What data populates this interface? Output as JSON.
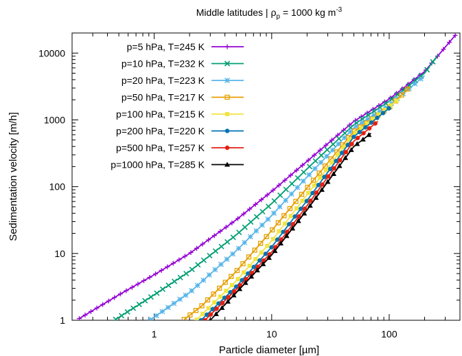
{
  "chart_data": {
    "type": "line",
    "title": "Middle latitudes | ρ",
    "title_sub": "p",
    "title_rest": " = 1000 kg m",
    "title_sup": "-3",
    "xlabel": "Particle diameter [µm]",
    "ylabel": "Sedimentation velocity [m/h]",
    "xscale": "log",
    "yscale": "log",
    "xlim": [
      0.2,
      400
    ],
    "ylim": [
      1,
      20000
    ],
    "x_ticks": [
      1,
      10,
      100
    ],
    "x_tick_labels": [
      "1",
      "10",
      "100"
    ],
    "y_ticks": [
      1,
      10,
      100,
      1000,
      10000
    ],
    "y_tick_labels": [
      "1",
      "10",
      "100",
      "1000",
      "10000"
    ],
    "grid": false,
    "legend_position": "top-left",
    "series": [
      {
        "name": "p=5 hPa, T=245 K",
        "color": "#9400d3",
        "marker": "plus",
        "points": [
          [
            0.23,
            1.06
          ],
          [
            0.5,
            2.4
          ],
          [
            1,
            4.8
          ],
          [
            2,
            10
          ],
          [
            5,
            32
          ],
          [
            10,
            85
          ],
          [
            20,
            240
          ],
          [
            50,
            950
          ],
          [
            100,
            2050
          ],
          [
            200,
            5300
          ],
          [
            370,
            19000
          ]
        ]
      },
      {
        "name": "p=10 hPa, T=232 K",
        "color": "#009e73",
        "marker": "cross",
        "points": [
          [
            0.47,
            1.03
          ],
          [
            1,
            2.4
          ],
          [
            2,
            5.4
          ],
          [
            5,
            19
          ],
          [
            10,
            56
          ],
          [
            20,
            185
          ],
          [
            50,
            850
          ],
          [
            100,
            1900
          ],
          [
            200,
            5000
          ],
          [
            260,
            9400
          ]
        ]
      },
      {
        "name": "p=20 hPa, T=223 K",
        "color": "#56b4e9",
        "marker": "star",
        "points": [
          [
            0.93,
            1.02
          ],
          [
            2,
            2.6
          ],
          [
            5,
            11
          ],
          [
            10,
            37
          ],
          [
            20,
            140
          ],
          [
            50,
            760
          ],
          [
            100,
            1650
          ],
          [
            200,
            4600
          ]
        ]
      },
      {
        "name": "p=50 hPa, T=217 K",
        "color": "#e69f00",
        "marker": "box",
        "points": [
          [
            1.8,
            1.03
          ],
          [
            2.5,
            1.6
          ],
          [
            5,
            5.4
          ],
          [
            10,
            22
          ],
          [
            20,
            96
          ],
          [
            50,
            670
          ],
          [
            100,
            1530
          ],
          [
            150,
            3150
          ]
        ]
      },
      {
        "name": "p=100 hPa, T=215 K",
        "color": "#f0e442",
        "marker": "fbox",
        "points": [
          [
            2.3,
            1.02
          ],
          [
            5,
            3.9
          ],
          [
            10,
            15.5
          ],
          [
            20,
            76
          ],
          [
            50,
            620
          ],
          [
            125,
            2150
          ]
        ]
      },
      {
        "name": "p=200 hPa, T=220 K",
        "color": "#0072b2",
        "marker": "circle",
        "points": [
          [
            2.5,
            1.0
          ],
          [
            5,
            3.2
          ],
          [
            10,
            12.5
          ],
          [
            20,
            62
          ],
          [
            50,
            560
          ],
          [
            100,
            1500
          ]
        ]
      },
      {
        "name": "p=500 hPa, T=257 K",
        "color": "#e51e10",
        "marker": "circle",
        "points": [
          [
            2.7,
            1.0
          ],
          [
            5,
            2.9
          ],
          [
            10,
            10.5
          ],
          [
            20,
            52
          ],
          [
            50,
            480
          ],
          [
            80,
            950
          ]
        ]
      },
      {
        "name": "p=1000 hPa, T=285 K",
        "color": "#000000",
        "marker": "triangle",
        "points": [
          [
            3,
            1.0
          ],
          [
            5,
            2.6
          ],
          [
            10,
            9.5
          ],
          [
            20,
            45
          ],
          [
            50,
            400
          ],
          [
            70,
            630
          ]
        ]
      }
    ]
  }
}
